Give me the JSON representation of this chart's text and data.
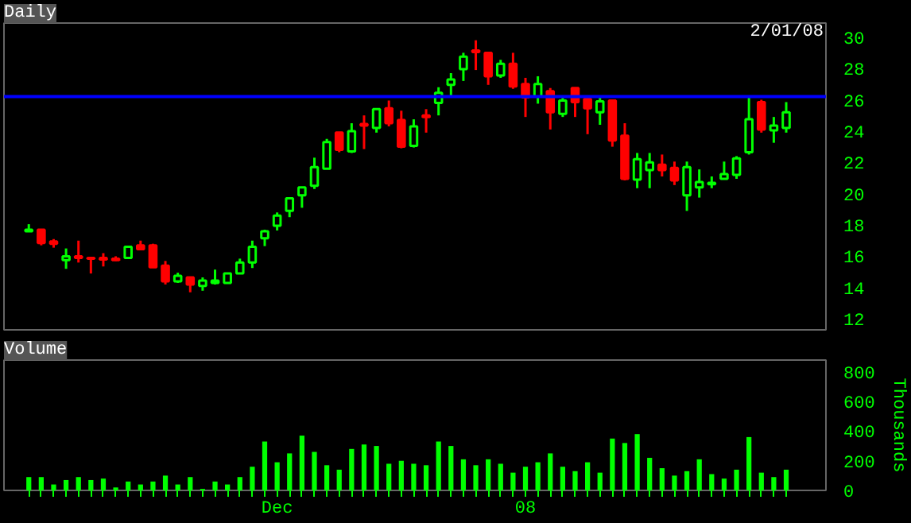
{
  "chart_data": [
    {
      "type": "candlestick",
      "title": "Daily",
      "colors": [
        "#00ff00",
        "#ff0000",
        "#ff0000",
        "#00ff00",
        "#ff0000",
        "#ff0000",
        "#ff0000",
        "#ff0000",
        "#00ff00",
        "#ff0000",
        "#ff0000",
        "#ff0000",
        "#00ff00",
        "#ff0000",
        "#00ff00",
        "#00ff00",
        "#00ff00",
        "#00ff00",
        "#00ff00",
        "#00ff00",
        "#00ff00",
        "#00ff00",
        "#00ff00",
        "#00ff00",
        "#00ff00",
        "#ff0000",
        "#00ff00",
        "#ff0000",
        "#00ff00",
        "#ff0000",
        "#ff0000",
        "#00ff00",
        "#ff0000",
        "#00ff00",
        "#00ff00",
        "#00ff00",
        "#ff0000",
        "#ff0000",
        "#00ff00",
        "#ff0000",
        "#ff0000",
        "#00ff00",
        "#ff0000",
        "#00ff00",
        "#ff0000",
        "#ff0000",
        "#00ff00",
        "#ff0000",
        "#ff0000",
        "#00ff00",
        "#00ff00",
        "#ff0000",
        "#ff0000",
        "#00ff00",
        "#00ff00",
        "#00ff00",
        "#00ff00",
        "#00ff00",
        "#00ff00",
        "#ff0000",
        "#00ff00",
        "#00ff00"
      ],
      "annotations": [
        "2/01/08"
      ],
      "tick_labels": "y",
      "categories": [
        null,
        null,
        null,
        null,
        null,
        null,
        null,
        null,
        null,
        null,
        null,
        null,
        null,
        null,
        null,
        null,
        null,
        null,
        null,
        null,
        null,
        null,
        null,
        null,
        null,
        null,
        null,
        null,
        null,
        null,
        null,
        null,
        null,
        null,
        null,
        null,
        null,
        null,
        null,
        null,
        null,
        null,
        null,
        null,
        null,
        null,
        null,
        null,
        null,
        null,
        null,
        null,
        null,
        null,
        null,
        null,
        null,
        null,
        null,
        null,
        null,
        null
      ],
      "ohlc": [
        [
          17.6,
          18.05,
          17.55,
          17.7
        ],
        [
          17.7,
          17.7,
          16.7,
          16.85
        ],
        [
          16.95,
          17.1,
          16.55,
          16.8
        ],
        [
          15.75,
          16.5,
          15.2,
          16.0
        ],
        [
          16.0,
          17.0,
          15.6,
          15.9
        ],
        [
          15.9,
          15.9,
          14.9,
          15.85
        ],
        [
          15.9,
          16.2,
          15.35,
          15.8
        ],
        [
          15.85,
          16.0,
          15.7,
          15.75
        ],
        [
          15.9,
          16.6,
          15.9,
          16.6
        ],
        [
          16.7,
          17.0,
          16.45,
          16.45
        ],
        [
          16.7,
          16.8,
          15.3,
          15.3
        ],
        [
          15.4,
          15.7,
          14.2,
          14.4
        ],
        [
          14.4,
          14.95,
          14.3,
          14.75
        ],
        [
          14.65,
          14.65,
          13.7,
          14.2
        ],
        [
          14.1,
          14.65,
          13.8,
          14.45
        ],
        [
          14.3,
          15.15,
          14.2,
          14.45
        ],
        [
          14.3,
          14.9,
          14.3,
          14.9
        ],
        [
          14.9,
          15.85,
          14.9,
          15.6
        ],
        [
          15.6,
          17.0,
          15.25,
          16.6
        ],
        [
          17.15,
          17.7,
          16.65,
          17.6
        ],
        [
          17.95,
          18.8,
          17.65,
          18.6
        ],
        [
          18.9,
          19.7,
          18.5,
          19.7
        ],
        [
          19.9,
          20.4,
          19.1,
          20.4
        ],
        [
          20.5,
          22.3,
          20.3,
          21.7
        ],
        [
          21.6,
          23.5,
          21.6,
          23.3
        ],
        [
          23.9,
          23.9,
          22.65,
          22.8
        ],
        [
          22.7,
          24.5,
          22.6,
          24.0
        ],
        [
          24.45,
          25.0,
          22.85,
          24.35
        ],
        [
          24.2,
          25.4,
          23.9,
          25.4
        ],
        [
          25.45,
          25.95,
          24.3,
          24.5
        ],
        [
          24.7,
          25.3,
          22.9,
          23.0
        ],
        [
          23.05,
          24.75,
          22.95,
          24.3
        ],
        [
          25.0,
          25.4,
          23.9,
          24.9
        ],
        [
          25.8,
          26.8,
          25.0,
          26.45
        ],
        [
          26.95,
          27.7,
          26.25,
          27.3
        ],
        [
          27.95,
          29.0,
          27.2,
          28.75
        ],
        [
          29.15,
          29.8,
          27.9,
          29.05
        ],
        [
          29.0,
          29.0,
          26.95,
          27.5
        ],
        [
          27.55,
          28.55,
          27.4,
          28.3
        ],
        [
          28.3,
          29.0,
          26.7,
          26.85
        ],
        [
          27.0,
          27.4,
          24.9,
          26.15
        ],
        [
          26.2,
          27.5,
          25.75,
          27.0
        ],
        [
          26.55,
          26.75,
          24.1,
          25.2
        ],
        [
          25.1,
          26.15,
          24.9,
          25.95
        ],
        [
          26.75,
          26.75,
          24.9,
          25.85
        ],
        [
          26.05,
          26.25,
          23.8,
          25.45
        ],
        [
          25.2,
          26.15,
          24.4,
          25.9
        ],
        [
          25.95,
          25.95,
          23.0,
          23.4
        ],
        [
          23.7,
          24.5,
          20.85,
          20.95
        ],
        [
          20.9,
          22.6,
          20.35,
          22.2
        ],
        [
          21.5,
          22.6,
          20.35,
          22.0
        ],
        [
          21.85,
          22.5,
          21.1,
          21.5
        ],
        [
          21.65,
          22.05,
          20.55,
          20.85
        ],
        [
          19.9,
          22.05,
          18.9,
          21.7
        ],
        [
          20.4,
          21.55,
          19.75,
          20.75
        ],
        [
          20.6,
          21.1,
          20.35,
          20.7
        ],
        [
          20.95,
          22.05,
          20.95,
          21.25
        ],
        [
          21.2,
          22.4,
          20.95,
          22.25
        ],
        [
          22.65,
          26.2,
          22.5,
          24.75
        ],
        [
          25.85,
          26.0,
          23.9,
          24.1
        ],
        [
          24.05,
          24.9,
          23.25,
          24.35
        ],
        [
          24.2,
          25.85,
          23.9,
          25.2
        ]
      ],
      "ylim": [
        11.3,
        30.9
      ],
      "yticks": [
        12,
        14,
        16,
        18,
        20,
        22,
        24,
        26,
        28,
        30
      ],
      "ref_lines": [
        {
          "axis": "y",
          "value": 26.2,
          "color": "#0000ff"
        }
      ]
    },
    {
      "type": "bar",
      "title": "Volume",
      "color": "#00ff00",
      "ylabel": "Thousands",
      "categories": [
        null,
        null,
        null,
        null,
        null,
        null,
        null,
        null,
        null,
        null,
        null,
        null,
        null,
        null,
        null,
        null,
        null,
        null,
        null,
        null,
        "Dec",
        null,
        null,
        null,
        null,
        null,
        null,
        null,
        null,
        null,
        null,
        null,
        null,
        null,
        null,
        null,
        null,
        null,
        null,
        null,
        "08",
        null,
        null,
        null,
        null,
        null,
        null,
        null,
        null,
        null,
        null,
        null,
        null,
        null,
        null,
        null,
        null,
        null,
        null,
        null,
        null,
        null
      ],
      "values": [
        90,
        90,
        40,
        70,
        90,
        70,
        80,
        20,
        60,
        40,
        60,
        100,
        40,
        90,
        10,
        60,
        40,
        90,
        160,
        330,
        190,
        250,
        370,
        260,
        170,
        140,
        280,
        310,
        300,
        180,
        200,
        180,
        170,
        330,
        300,
        210,
        170,
        210,
        180,
        120,
        160,
        190,
        250,
        160,
        130,
        190,
        120,
        350,
        320,
        380,
        220,
        150,
        100,
        130,
        210,
        110,
        80,
        140,
        360,
        120,
        90,
        140
      ],
      "ylim": [
        0,
        880
      ],
      "yticks": [
        0,
        200,
        400,
        600,
        800
      ]
    }
  ]
}
